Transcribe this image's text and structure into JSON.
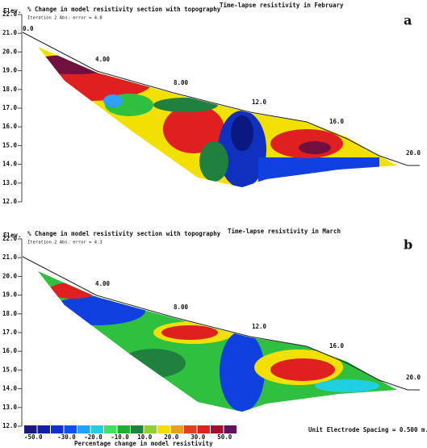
{
  "panels": [
    {
      "title": "% Change in model resistivity section with topography",
      "iteration": "Iteration 2 Abs. error = 4.8",
      "heading": "Time-lapse resistivity in February",
      "letter": "a",
      "elev_label": "Elev.",
      "elevations": [
        "22.0",
        "21.0",
        "20.0",
        "19.0",
        "18.0",
        "17.0",
        "16.0",
        "15.0",
        "14.0",
        "13.0",
        "12.0"
      ],
      "distances": [
        "0.0",
        "4.00",
        "8.00",
        "12.0",
        "16.0",
        "20.0"
      ]
    },
    {
      "title": "% Change in model resistivity section with topography",
      "iteration": "Iteration 2 Abs. error = 4.3",
      "heading": "Time-lapse resistivity in March",
      "letter": "b",
      "elev_label": "Elev.",
      "elevations": [
        "22.0",
        "21.0",
        "20.0",
        "19.0",
        "18.0",
        "17.0",
        "16.0",
        "15.0",
        "14.0",
        "13.0",
        "12.0"
      ],
      "distances": [
        "4.00",
        "8.00",
        "12.0",
        "16.0",
        "20.0"
      ]
    }
  ],
  "legend": {
    "labels": [
      "-50.0",
      "-30.0",
      "-20.0",
      "-10.0",
      "10.0",
      "20.0",
      "30.0",
      "50.0"
    ],
    "caption": "Percentage change in model resistivity"
  },
  "spacing": "Unit Electrode Spacing = 0.500 m."
}
